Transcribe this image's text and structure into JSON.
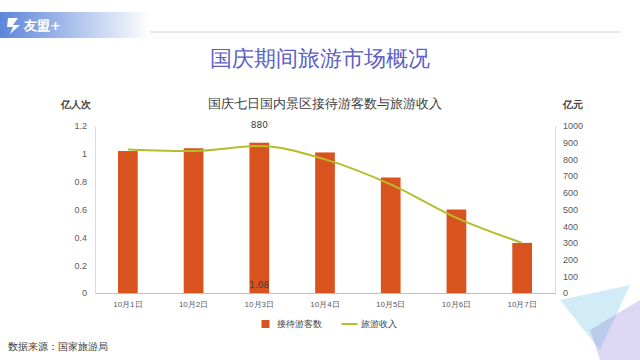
{
  "page": {
    "brand": "友盟+",
    "title": "国庆期间旅游市场概况",
    "source": "数据来源：国家旅游局"
  },
  "chart_data": {
    "type": "bar",
    "title": "国庆七日国内景区接待游客数与旅游收入",
    "y_label": "亿人次",
    "y2_label": "亿元",
    "categories": [
      "10月1日",
      "10月2日",
      "10月3日",
      "10月4日",
      "10月5日",
      "10月6日",
      "10月7日"
    ],
    "series": [
      {
        "name": "接待游客数",
        "type": "bar",
        "color": "#d9531e",
        "values": [
          1.02,
          1.04,
          1.08,
          1.01,
          0.83,
          0.6,
          0.36
        ],
        "value_labels": [
          null,
          null,
          "1.08",
          null,
          null,
          null,
          null
        ]
      },
      {
        "name": "旅游收入",
        "type": "line",
        "color": "#b5be2a",
        "axis": "y2",
        "marker": "none",
        "line_style": "solid",
        "values": [
          860,
          850,
          880,
          800,
          650,
          450,
          300
        ],
        "value_labels": [
          null,
          null,
          "880",
          null,
          null,
          null,
          null
        ]
      }
    ],
    "ylim": [
      0,
      1.2
    ],
    "yticks": [
      0,
      0.2,
      0.4,
      0.6,
      0.8,
      1,
      1.2
    ],
    "y2lim": [
      0,
      1000
    ],
    "y2ticks": [
      0,
      100,
      200,
      300,
      400,
      500,
      600,
      700,
      800,
      900,
      1000
    ],
    "grid": false,
    "legend": "bottom",
    "data_labels": true
  }
}
